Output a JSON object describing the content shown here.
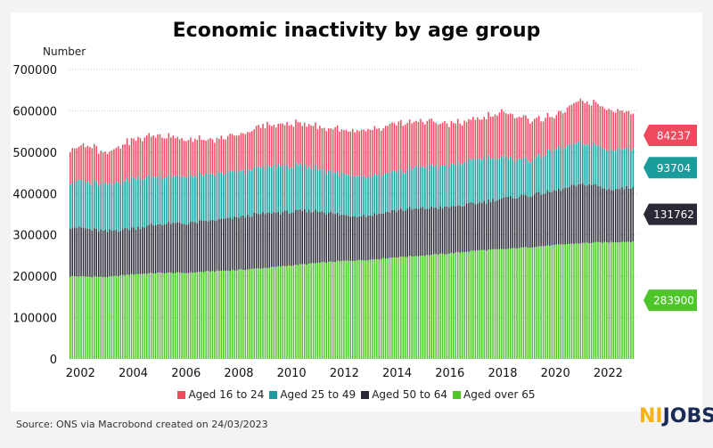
{
  "chart_data": {
    "type": "bar",
    "stacked": true,
    "title": "Economic inactivity by age group",
    "ylabel": "Number",
    "xlabel": "",
    "ylim": [
      0,
      700000
    ],
    "yticks": [
      0,
      100000,
      200000,
      300000,
      400000,
      500000,
      600000,
      700000
    ],
    "xticks": [
      "2002",
      "2004",
      "2006",
      "2008",
      "2010",
      "2012",
      "2014",
      "2016",
      "2018",
      "2020",
      "2022"
    ],
    "grid": "horizontal dotted",
    "legend_position": "bottom",
    "x_start": "2001-08",
    "x_end": "2023-01",
    "series": [
      {
        "name": "Aged over 65",
        "color": "#4ec62a",
        "end_label": "283900",
        "keyframes": [
          [
            2001.6,
            200000
          ],
          [
            2003.0,
            198000
          ],
          [
            2004.0,
            205000
          ],
          [
            2005.0,
            208000
          ],
          [
            2006.0,
            208000
          ],
          [
            2007.0,
            212000
          ],
          [
            2008.0,
            215000
          ],
          [
            2009.0,
            220000
          ],
          [
            2010.0,
            226000
          ],
          [
            2011.0,
            232000
          ],
          [
            2012.0,
            237000
          ],
          [
            2013.0,
            240000
          ],
          [
            2014.0,
            246000
          ],
          [
            2015.0,
            250000
          ],
          [
            2016.0,
            255000
          ],
          [
            2017.0,
            262000
          ],
          [
            2018.0,
            265000
          ],
          [
            2019.0,
            270000
          ],
          [
            2020.0,
            275000
          ],
          [
            2021.0,
            280000
          ],
          [
            2022.0,
            282000
          ],
          [
            2023.0,
            283900
          ]
        ]
      },
      {
        "name": "Aged 50 to 64",
        "color": "#2a2a36",
        "end_label": "131762",
        "keyframes": [
          [
            2001.6,
            120000
          ],
          [
            2003.0,
            110000
          ],
          [
            2004.0,
            112000
          ],
          [
            2005.0,
            118000
          ],
          [
            2006.0,
            120000
          ],
          [
            2007.0,
            122000
          ],
          [
            2008.0,
            128000
          ],
          [
            2009.0,
            132000
          ],
          [
            2010.0,
            130000
          ],
          [
            2011.0,
            126000
          ],
          [
            2012.0,
            110000
          ],
          [
            2013.0,
            108000
          ],
          [
            2014.0,
            114000
          ],
          [
            2015.0,
            114000
          ],
          [
            2016.0,
            112000
          ],
          [
            2017.0,
            114000
          ],
          [
            2018.0,
            122000
          ],
          [
            2019.0,
            126000
          ],
          [
            2020.0,
            130000
          ],
          [
            2020.8,
            140000
          ],
          [
            2021.4,
            142000
          ],
          [
            2022.0,
            128000
          ],
          [
            2023.0,
            131762
          ]
        ]
      },
      {
        "name": "Aged 25 to 49",
        "color": "#1a9c9c",
        "end_label": "93704",
        "keyframes": [
          [
            2001.6,
            110000
          ],
          [
            2003.0,
            115000
          ],
          [
            2004.0,
            120000
          ],
          [
            2005.0,
            116000
          ],
          [
            2006.0,
            113000
          ],
          [
            2007.0,
            110000
          ],
          [
            2008.0,
            110000
          ],
          [
            2009.0,
            112000
          ],
          [
            2010.0,
            112000
          ],
          [
            2011.0,
            104000
          ],
          [
            2012.0,
            98000
          ],
          [
            2013.0,
            93000
          ],
          [
            2014.0,
            92000
          ],
          [
            2015.0,
            102000
          ],
          [
            2016.0,
            100000
          ],
          [
            2017.0,
            108000
          ],
          [
            2018.0,
            100000
          ],
          [
            2019.0,
            85000
          ],
          [
            2020.0,
            100000
          ],
          [
            2021.0,
            100000
          ],
          [
            2022.0,
            98000
          ],
          [
            2023.0,
            93704
          ]
        ]
      },
      {
        "name": "Aged 16 to 24",
        "color": "#ef4a5e",
        "end_label": "84237",
        "keyframes": [
          [
            2001.6,
            80000
          ],
          [
            2002.3,
            90000
          ],
          [
            2003.0,
            75000
          ],
          [
            2004.0,
            95000
          ],
          [
            2005.0,
            100000
          ],
          [
            2006.0,
            90000
          ],
          [
            2007.0,
            82000
          ],
          [
            2008.0,
            90000
          ],
          [
            2009.0,
            100000
          ],
          [
            2010.0,
            102000
          ],
          [
            2011.0,
            100000
          ],
          [
            2012.0,
            108000
          ],
          [
            2013.0,
            112000
          ],
          [
            2014.0,
            116000
          ],
          [
            2015.0,
            110000
          ],
          [
            2016.0,
            100000
          ],
          [
            2017.0,
            95000
          ],
          [
            2018.0,
            108000
          ],
          [
            2019.0,
            100000
          ],
          [
            2020.0,
            80000
          ],
          [
            2021.0,
            100000
          ],
          [
            2022.0,
            100000
          ],
          [
            2023.0,
            84237
          ]
        ]
      }
    ]
  },
  "source": "Source: ONS via Macrobond created on 24/03/2023",
  "logo": {
    "part1": "NI",
    "part2": "JOBS"
  }
}
